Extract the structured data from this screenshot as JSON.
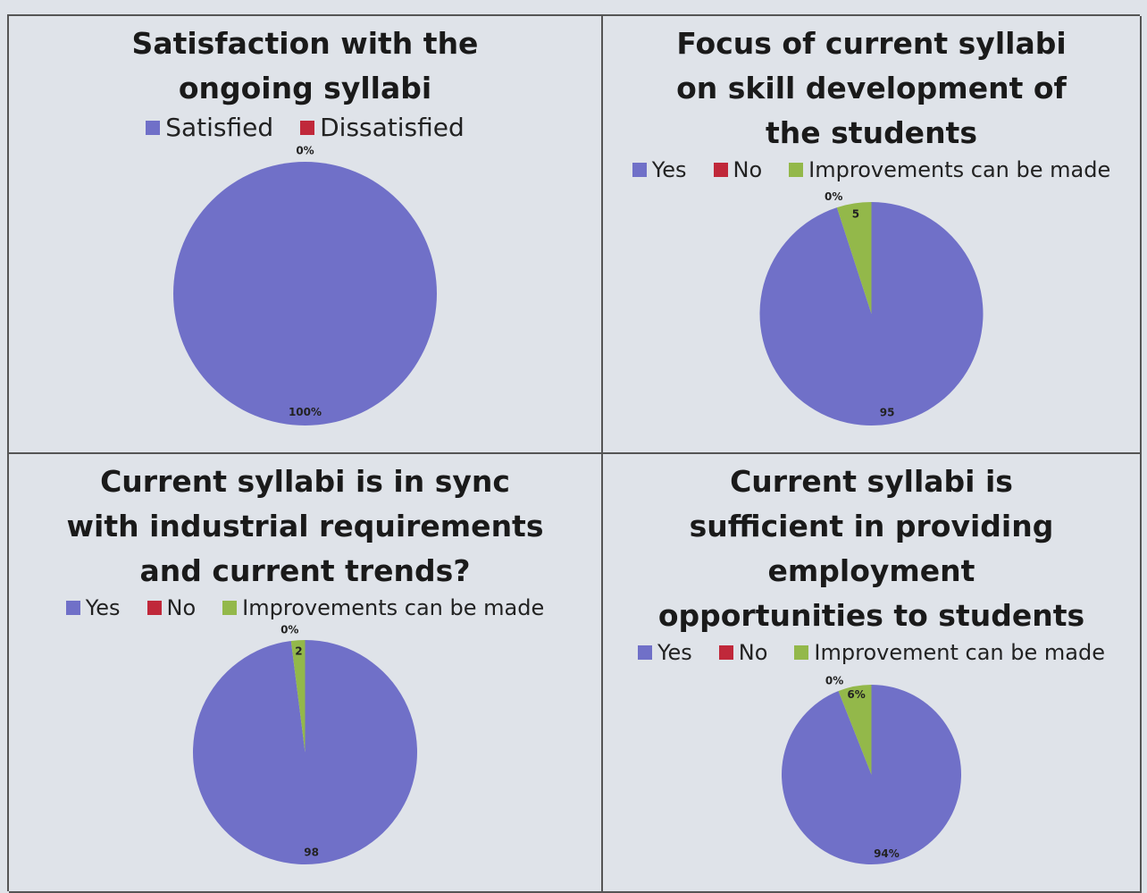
{
  "chart_data": [
    {
      "type": "pie",
      "title": "Satisfaction with the ongoing syllabi",
      "categories": [
        "Satisfied",
        "Dissatisfied"
      ],
      "values": [
        100,
        0
      ],
      "value_labels": [
        "100%",
        "0%"
      ],
      "colors": [
        "#7070c8",
        "#c0283a"
      ]
    },
    {
      "type": "pie",
      "title": "Focus of current syllabi on skill development of the students",
      "categories": [
        "Yes",
        "No",
        "Improvements can be made"
      ],
      "values": [
        95,
        0,
        5
      ],
      "value_labels": [
        "95",
        "0%",
        "5"
      ],
      "colors": [
        "#7070c8",
        "#c0283a",
        "#93b84a"
      ]
    },
    {
      "type": "pie",
      "title": "Current syllabi is in sync with industrial requirements and current trends?",
      "categories": [
        "Yes",
        "No",
        "Improvements can be made"
      ],
      "values": [
        98,
        0,
        2
      ],
      "value_labels": [
        "98",
        "0%",
        "2"
      ],
      "colors": [
        "#7070c8",
        "#c0283a",
        "#93b84a"
      ]
    },
    {
      "type": "pie",
      "title": "Current syllabi is sufficient in providing employment opportunities to students",
      "categories": [
        "Yes",
        "No",
        "Improvement can be made"
      ],
      "values": [
        94,
        0,
        6
      ],
      "value_labels": [
        "94%",
        "0%",
        "6%"
      ],
      "colors": [
        "#7070c8",
        "#c0283a",
        "#93b84a"
      ]
    }
  ]
}
